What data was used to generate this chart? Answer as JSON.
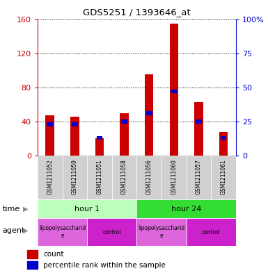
{
  "title": "GDS5251 / 1393646_at",
  "samples": [
    "GSM1211052",
    "GSM1211059",
    "GSM1211051",
    "GSM1211058",
    "GSM1211056",
    "GSM1211060",
    "GSM1211057",
    "GSM1211061"
  ],
  "count_values": [
    47,
    46,
    20,
    50,
    95,
    155,
    63,
    28
  ],
  "percentile_values": [
    23,
    23,
    13,
    25,
    31,
    47,
    25,
    13
  ],
  "count_color": "#cc0000",
  "percentile_color": "#0000cc",
  "ylim_left": [
    0,
    160
  ],
  "ylim_right": [
    0,
    100
  ],
  "yticks_left": [
    0,
    40,
    80,
    120,
    160
  ],
  "yticks_right": [
    0,
    25,
    50,
    75,
    100
  ],
  "ytick_labels_right": [
    "0",
    "25",
    "50",
    "75",
    "100%"
  ],
  "time_groups": [
    {
      "label": "hour 1",
      "start": 0,
      "end": 4,
      "color": "#bbffbb"
    },
    {
      "label": "hour 24",
      "start": 4,
      "end": 8,
      "color": "#33dd33"
    }
  ],
  "agent_colors_lps": "#dd66dd",
  "agent_colors_ctrl": "#cc22cc",
  "agent_groups": [
    {
      "label": "lipopolysaccharid\ne",
      "start": 0,
      "end": 2
    },
    {
      "label": "control",
      "start": 2,
      "end": 4
    },
    {
      "label": "lipopolysaccharid\ne",
      "start": 4,
      "end": 6
    },
    {
      "label": "control",
      "start": 6,
      "end": 8
    }
  ],
  "bar_width": 0.35,
  "background_color": "#ffffff",
  "plot_bg_color": "#ffffff",
  "sample_bg_color": "#d0d0d0"
}
